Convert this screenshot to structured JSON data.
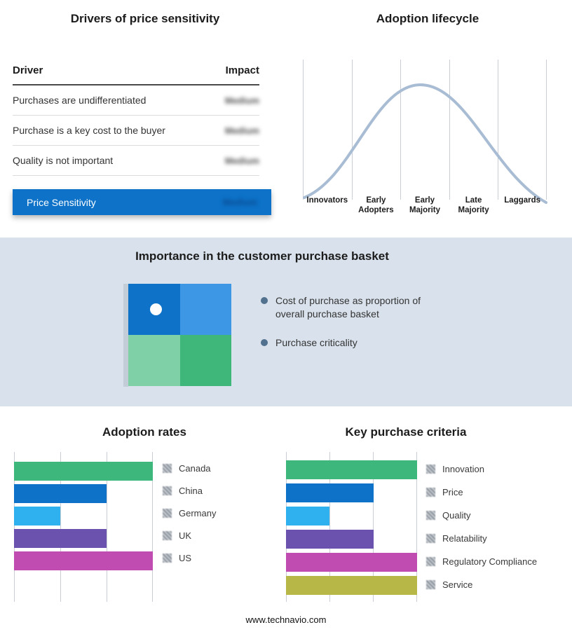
{
  "colors": {
    "accent": "#0d72c8",
    "band_bg": "#d9e2ec",
    "curve": "#a8bcd4",
    "grid": "#c9ced6",
    "bullet": "#52718f"
  },
  "basket": {
    "title": "Importance in the customer purchase basket",
    "bullets": [
      "Cost of purchase as proportion of overall purchase basket",
      "Purchase criticality"
    ],
    "quadrant_colors": {
      "top_left": "#0d72c8",
      "top_right": "#3e97e4",
      "bottom_left": "#7fd0a6",
      "bottom_right": "#3fb77b"
    }
  },
  "footer": {
    "website": "www.technavio.com"
  },
  "chart_data": [
    {
      "type": "table",
      "title": "Drivers of price sensitivity",
      "columns": [
        "Driver",
        "Impact"
      ],
      "rows": [
        [
          "Purchases are undifferentiated",
          "Medium"
        ],
        [
          "Purchase is a key cost to the buyer",
          "Medium"
        ],
        [
          "Quality is not important",
          "Medium"
        ]
      ],
      "summary_row": [
        "Price Sensitivity",
        "Medium"
      ],
      "note": "impact values appear blurred/redacted in the source image"
    },
    {
      "type": "line",
      "title": "Adoption lifecycle",
      "x": [
        "Innovators",
        "Early Adopters",
        "Early Majority",
        "Late Majority",
        "Laggards"
      ],
      "shape": "bell-curve peaking at Early Majority",
      "grid": true,
      "curve_color": "#a8bcd4"
    },
    {
      "type": "bar",
      "title": "Adoption rates",
      "orientation": "horizontal",
      "categories": [
        "Canada",
        "China",
        "Germany",
        "UK",
        "US"
      ],
      "values": [
        3,
        2,
        1,
        2,
        3
      ],
      "xlim": [
        0,
        3
      ],
      "grid": true,
      "legend_position": "right",
      "colors": [
        "#3eb77c",
        "#0d72c8",
        "#2fb1f0",
        "#6a52ae",
        "#c04cb2"
      ],
      "note": "no numeric axis labels; values estimated in gridline units"
    },
    {
      "type": "bar",
      "title": "Key purchase criteria",
      "orientation": "horizontal",
      "categories": [
        "Innovation",
        "Price",
        "Quality",
        "Relatability",
        "Regulatory Compliance",
        "Service"
      ],
      "values": [
        3,
        2,
        1,
        2,
        3,
        3
      ],
      "xlim": [
        0,
        3
      ],
      "grid": true,
      "legend_position": "right",
      "colors": [
        "#3eb77c",
        "#0d72c8",
        "#2fb1f0",
        "#6a52ae",
        "#c04cb2",
        "#b7b748"
      ],
      "note": "no numeric axis labels; values estimated in gridline units"
    }
  ]
}
